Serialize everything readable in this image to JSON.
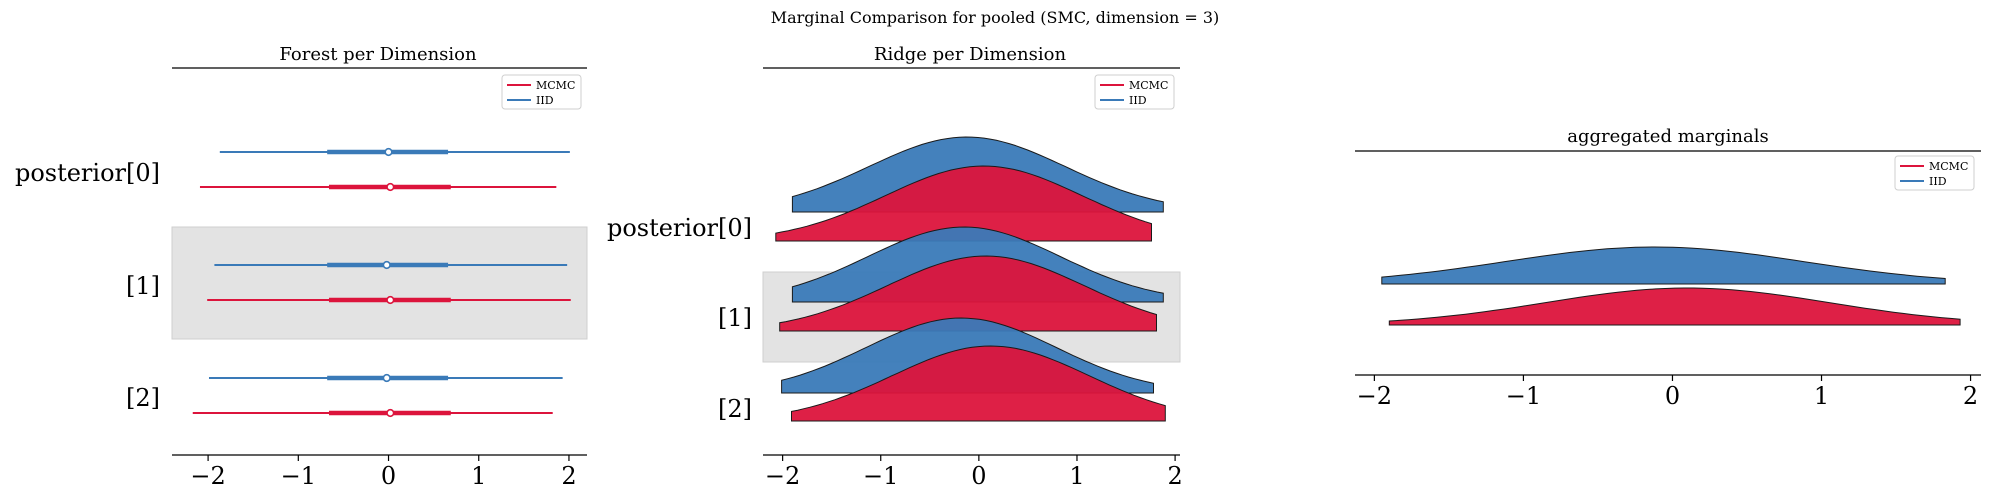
{
  "suptitle": "Marginal Comparison for pooled (SMC, dimension = 3)",
  "colors": {
    "MCMC": "#dc143c",
    "IID": "#3a7ab8",
    "band": "#e3e3e3"
  },
  "legend_entries": [
    "MCMC",
    "IID"
  ],
  "chart_data": [
    {
      "type": "forest",
      "title": "Forest per Dimension",
      "xlim": [
        -2.4,
        2.2
      ],
      "xticks": [
        -2,
        -1,
        0,
        1,
        2
      ],
      "xtick_labels": [
        "−2",
        "−1",
        "0",
        "1",
        "2"
      ],
      "grid": false,
      "legend_placement": "top-right",
      "series_order": [
        "IID",
        "MCMC"
      ],
      "categories": [
        "posterior[0]",
        "[1]",
        "[2]"
      ],
      "intervals": [
        {
          "IID": {
            "median": 0.0,
            "hdi_50": [
              -0.68,
              0.66
            ],
            "hdi_94": [
              -1.87,
              2.01
            ]
          },
          "MCMC": {
            "median": 0.02,
            "hdi_50": [
              -0.66,
              0.69
            ],
            "hdi_94": [
              -2.09,
              1.86
            ]
          }
        },
        {
          "IID": {
            "median": -0.02,
            "hdi_50": [
              -0.68,
              0.66
            ],
            "hdi_94": [
              -1.93,
              1.98
            ]
          },
          "MCMC": {
            "median": 0.02,
            "hdi_50": [
              -0.66,
              0.69
            ],
            "hdi_94": [
              -2.01,
              2.02
            ]
          }
        },
        {
          "IID": {
            "median": -0.02,
            "hdi_50": [
              -0.68,
              0.66
            ],
            "hdi_94": [
              -1.99,
              1.93
            ]
          },
          "MCMC": {
            "median": 0.02,
            "hdi_50": [
              -0.66,
              0.69
            ],
            "hdi_94": [
              -2.17,
              1.82
            ]
          }
        }
      ]
    },
    {
      "type": "area",
      "subtype": "ridgeline",
      "title": "Ridge per Dimension",
      "xlim": [
        -2.2,
        2.05
      ],
      "xticks": [
        -2,
        -1,
        0,
        1,
        2
      ],
      "xtick_labels": [
        "−2",
        "−1",
        "0",
        "1",
        "2"
      ],
      "grid": false,
      "legend_placement": "top-right",
      "categories": [
        "posterior[0]",
        "[1]",
        "[2]"
      ],
      "series_order": [
        "IID",
        "MCMC"
      ],
      "ridges": [
        {
          "IID": {
            "range": [
              -1.9,
              1.88
            ],
            "peak": -0.12,
            "width": 1.0
          },
          "MCMC": {
            "range": [
              -2.07,
              1.76
            ],
            "peak": 0.05,
            "width": 1.0
          }
        },
        {
          "IID": {
            "range": [
              -1.9,
              1.88
            ],
            "peak": -0.15,
            "width": 0.98
          },
          "MCMC": {
            "range": [
              -2.03,
              1.81
            ],
            "peak": 0.07,
            "width": 1.0
          }
        },
        {
          "IID": {
            "range": [
              -2.01,
              1.78
            ],
            "peak": -0.18,
            "width": 0.97
          },
          "MCMC": {
            "range": [
              -1.91,
              1.9
            ],
            "peak": 0.12,
            "width": 1.0
          }
        }
      ]
    },
    {
      "type": "area",
      "subtype": "ridgeline",
      "title": "aggregated marginals",
      "xlim": [
        -2.13,
        2.07
      ],
      "xticks": [
        -2,
        -1,
        0,
        1,
        2
      ],
      "xtick_labels": [
        "−2",
        "−1",
        "0",
        "1",
        "2"
      ],
      "grid": false,
      "legend_placement": "top-right",
      "series_order": [
        "IID",
        "MCMC"
      ],
      "ridges": [
        {
          "IID": {
            "range": [
              -1.95,
              1.83
            ],
            "peak": -0.12,
            "width": 1.0
          },
          "MCMC": {
            "range": [
              -1.9,
              1.93
            ],
            "peak": 0.1,
            "width": 0.95
          }
        }
      ]
    }
  ]
}
